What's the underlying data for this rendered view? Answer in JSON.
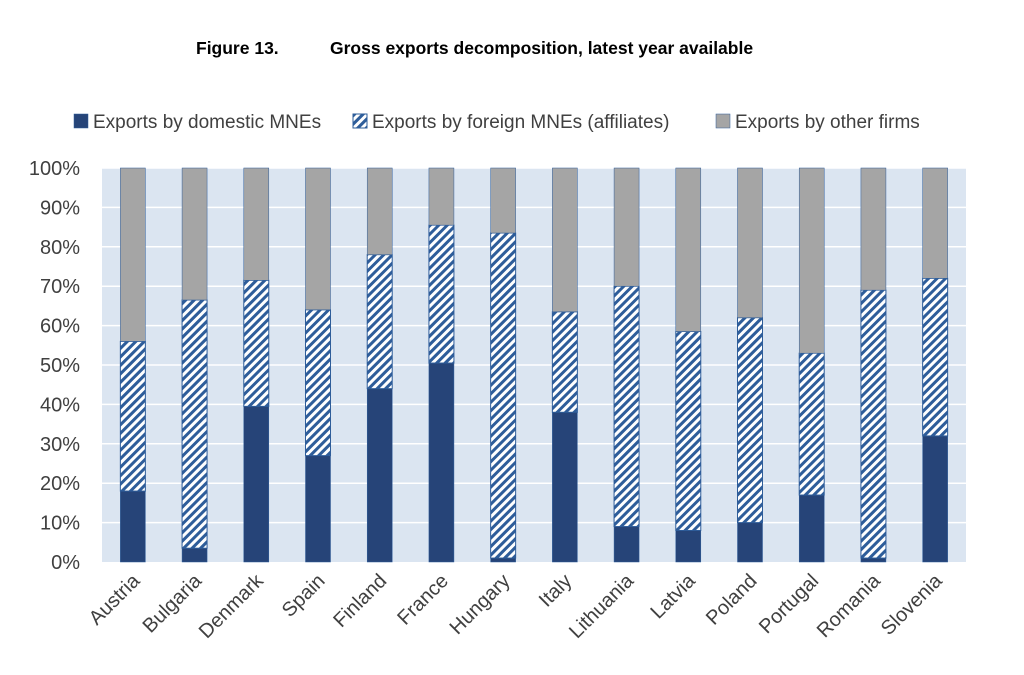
{
  "figure": {
    "number": "Figure 13.",
    "title": "Gross exports decomposition, latest year available"
  },
  "colors": {
    "domestic": "#264478",
    "foreign_fill": "#2e5d9a",
    "other": "#a5a5a5",
    "plot_bg": "#dbe5f1",
    "grid": "#ffffff"
  },
  "chart_data": {
    "type": "bar",
    "stacked": true,
    "title": "Gross exports decomposition, latest year available",
    "xlabel": "",
    "ylabel": "",
    "ylim": [
      0,
      100
    ],
    "y_ticks": [
      "0%",
      "10%",
      "20%",
      "30%",
      "40%",
      "50%",
      "60%",
      "70%",
      "80%",
      "90%",
      "100%"
    ],
    "legend_position": "top",
    "categories": [
      "Austria",
      "Bulgaria",
      "Denmark",
      "Spain",
      "Finland",
      "France",
      "Hungary",
      "Italy",
      "Lithuania",
      "Latvia",
      "Poland",
      "Portugal",
      "Romania",
      "Slovenia"
    ],
    "series": [
      {
        "name": "Exports by domestic MNEs",
        "values": [
          18,
          3.5,
          39.5,
          27,
          44,
          50.5,
          1,
          38,
          9,
          8,
          10,
          17,
          1,
          32
        ]
      },
      {
        "name": "Exports by foreign MNEs (affiliates)",
        "values": [
          38,
          63,
          32,
          37,
          34,
          35,
          82.5,
          25.5,
          61,
          50.5,
          52,
          36,
          68,
          40
        ]
      },
      {
        "name": "Exports by other firms",
        "values": [
          44,
          33.5,
          28.5,
          36,
          22,
          14.5,
          16.5,
          36.5,
          30,
          41.5,
          38,
          47,
          31,
          28
        ]
      }
    ]
  }
}
